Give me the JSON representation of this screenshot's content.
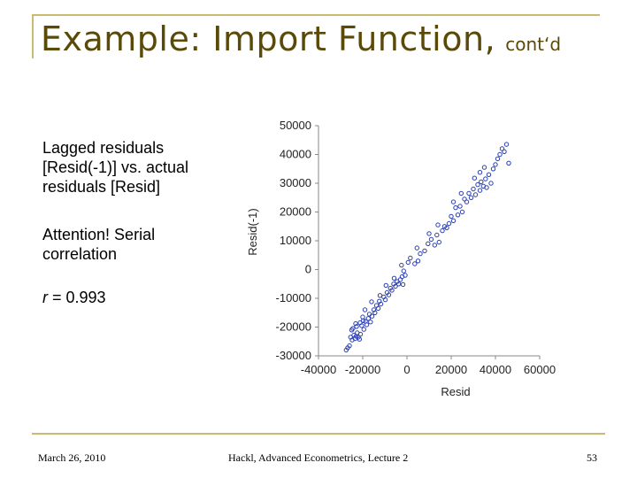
{
  "slide": {
    "title": "Example: Import Function,",
    "title_suffix": "cont‘d",
    "desc_lines": [
      "Lagged residuals",
      "[Resid(-1)] vs. actual",
      "residuals [Resid]"
    ],
    "attention_lines": [
      "Attention! Serial",
      "correlation"
    ],
    "r_label": "r",
    "r_value": " = 0.993"
  },
  "footer": {
    "date": "March 26, 2010",
    "center": "Hackl, Advanced Econometrics, Lecture 2",
    "page": "53"
  },
  "chart_data": {
    "type": "scatter",
    "xlabel": "Resid",
    "ylabel": "Resid(-1)",
    "xlim": [
      -40000,
      60000
    ],
    "ylim": [
      -30000,
      50000
    ],
    "xticks": [
      "-40000",
      "-20000",
      "0",
      "20000",
      "40000",
      "60000"
    ],
    "yticks": [
      "50000",
      "40000",
      "30000",
      "20000",
      "10000",
      "0",
      "-10000",
      "-20000",
      "-30000"
    ],
    "marker_color": "#2a3fb0",
    "points": [
      [
        -27500,
        -28000
      ],
      [
        -26800,
        -27200
      ],
      [
        -25500,
        -23500
      ],
      [
        -24800,
        -24500
      ],
      [
        -24000,
        -22800
      ],
      [
        -23500,
        -24000
      ],
      [
        -23000,
        -23200
      ],
      [
        -22500,
        -22000
      ],
      [
        -22000,
        -23500
      ],
      [
        -21500,
        -24200
      ],
      [
        -21000,
        -22500
      ],
      [
        -24500,
        -20500
      ],
      [
        -22800,
        -19800
      ],
      [
        -21200,
        -18500
      ],
      [
        -20500,
        -19500
      ],
      [
        -19800,
        -17800
      ],
      [
        -19500,
        -20800
      ],
      [
        -18800,
        -18000
      ],
      [
        -18200,
        -19200
      ],
      [
        -17500,
        -17000
      ],
      [
        -23200,
        -18800
      ],
      [
        -20000,
        -16500
      ],
      [
        -17000,
        -15500
      ],
      [
        -16500,
        -18200
      ],
      [
        -15800,
        -16200
      ],
      [
        -15000,
        -14000
      ],
      [
        -14500,
        -15000
      ],
      [
        -13800,
        -12500
      ],
      [
        -13000,
        -13500
      ],
      [
        -12500,
        -11000
      ],
      [
        -11800,
        -12000
      ],
      [
        -10500,
        -9500
      ],
      [
        -9800,
        -10500
      ],
      [
        -9000,
        -8000
      ],
      [
        -8200,
        -8800
      ],
      [
        -7500,
        -6500
      ],
      [
        -6800,
        -7200
      ],
      [
        -6000,
        -5000
      ],
      [
        -5200,
        -5800
      ],
      [
        -4500,
        -4200
      ],
      [
        -3800,
        -5000
      ],
      [
        -3000,
        -3500
      ],
      [
        -2200,
        -2500
      ],
      [
        -1500,
        -500
      ],
      [
        -800,
        -2000
      ],
      [
        -5800,
        -3000
      ],
      [
        -1800,
        -5200
      ],
      [
        500,
        2500
      ],
      [
        1500,
        4000
      ],
      [
        3500,
        2000
      ],
      [
        5000,
        3000
      ],
      [
        6000,
        5500
      ],
      [
        8000,
        6500
      ],
      [
        9500,
        9000
      ],
      [
        11000,
        10500
      ],
      [
        12500,
        8500
      ],
      [
        13500,
        12000
      ],
      [
        14500,
        9500
      ],
      [
        16000,
        13500
      ],
      [
        17000,
        15000
      ],
      [
        18000,
        14500
      ],
      [
        19000,
        16000
      ],
      [
        20000,
        18500
      ],
      [
        21000,
        17000
      ],
      [
        22000,
        21500
      ],
      [
        23000,
        19000
      ],
      [
        24000,
        22000
      ],
      [
        25000,
        20000
      ],
      [
        26000,
        24500
      ],
      [
        27000,
        23500
      ],
      [
        28000,
        26500
      ],
      [
        29000,
        25000
      ],
      [
        30000,
        28000
      ],
      [
        31000,
        26000
      ],
      [
        32000,
        29500
      ],
      [
        33000,
        27500
      ],
      [
        33500,
        30500
      ],
      [
        34500,
        29000
      ],
      [
        35500,
        31500
      ],
      [
        36000,
        28500
      ],
      [
        37000,
        33000
      ],
      [
        38000,
        30000
      ],
      [
        39000,
        35000
      ],
      [
        40000,
        36500
      ],
      [
        41000,
        38500
      ],
      [
        42000,
        40000
      ],
      [
        43000,
        42000
      ],
      [
        44000,
        41000
      ],
      [
        45000,
        43500
      ],
      [
        46000,
        37000
      ],
      [
        35000,
        35500
      ],
      [
        33000,
        33800
      ],
      [
        30500,
        31800
      ],
      [
        24500,
        26500
      ],
      [
        21000,
        23500
      ],
      [
        14000,
        15500
      ],
      [
        10000,
        12500
      ],
      [
        4500,
        7500
      ],
      [
        -2500,
        1500
      ],
      [
        -9500,
        -5500
      ],
      [
        -12200,
        -9000
      ],
      [
        -16000,
        -11200
      ],
      [
        -19000,
        -14000
      ],
      [
        -26000,
        -26500
      ],
      [
        -25000,
        -21000
      ]
    ]
  }
}
